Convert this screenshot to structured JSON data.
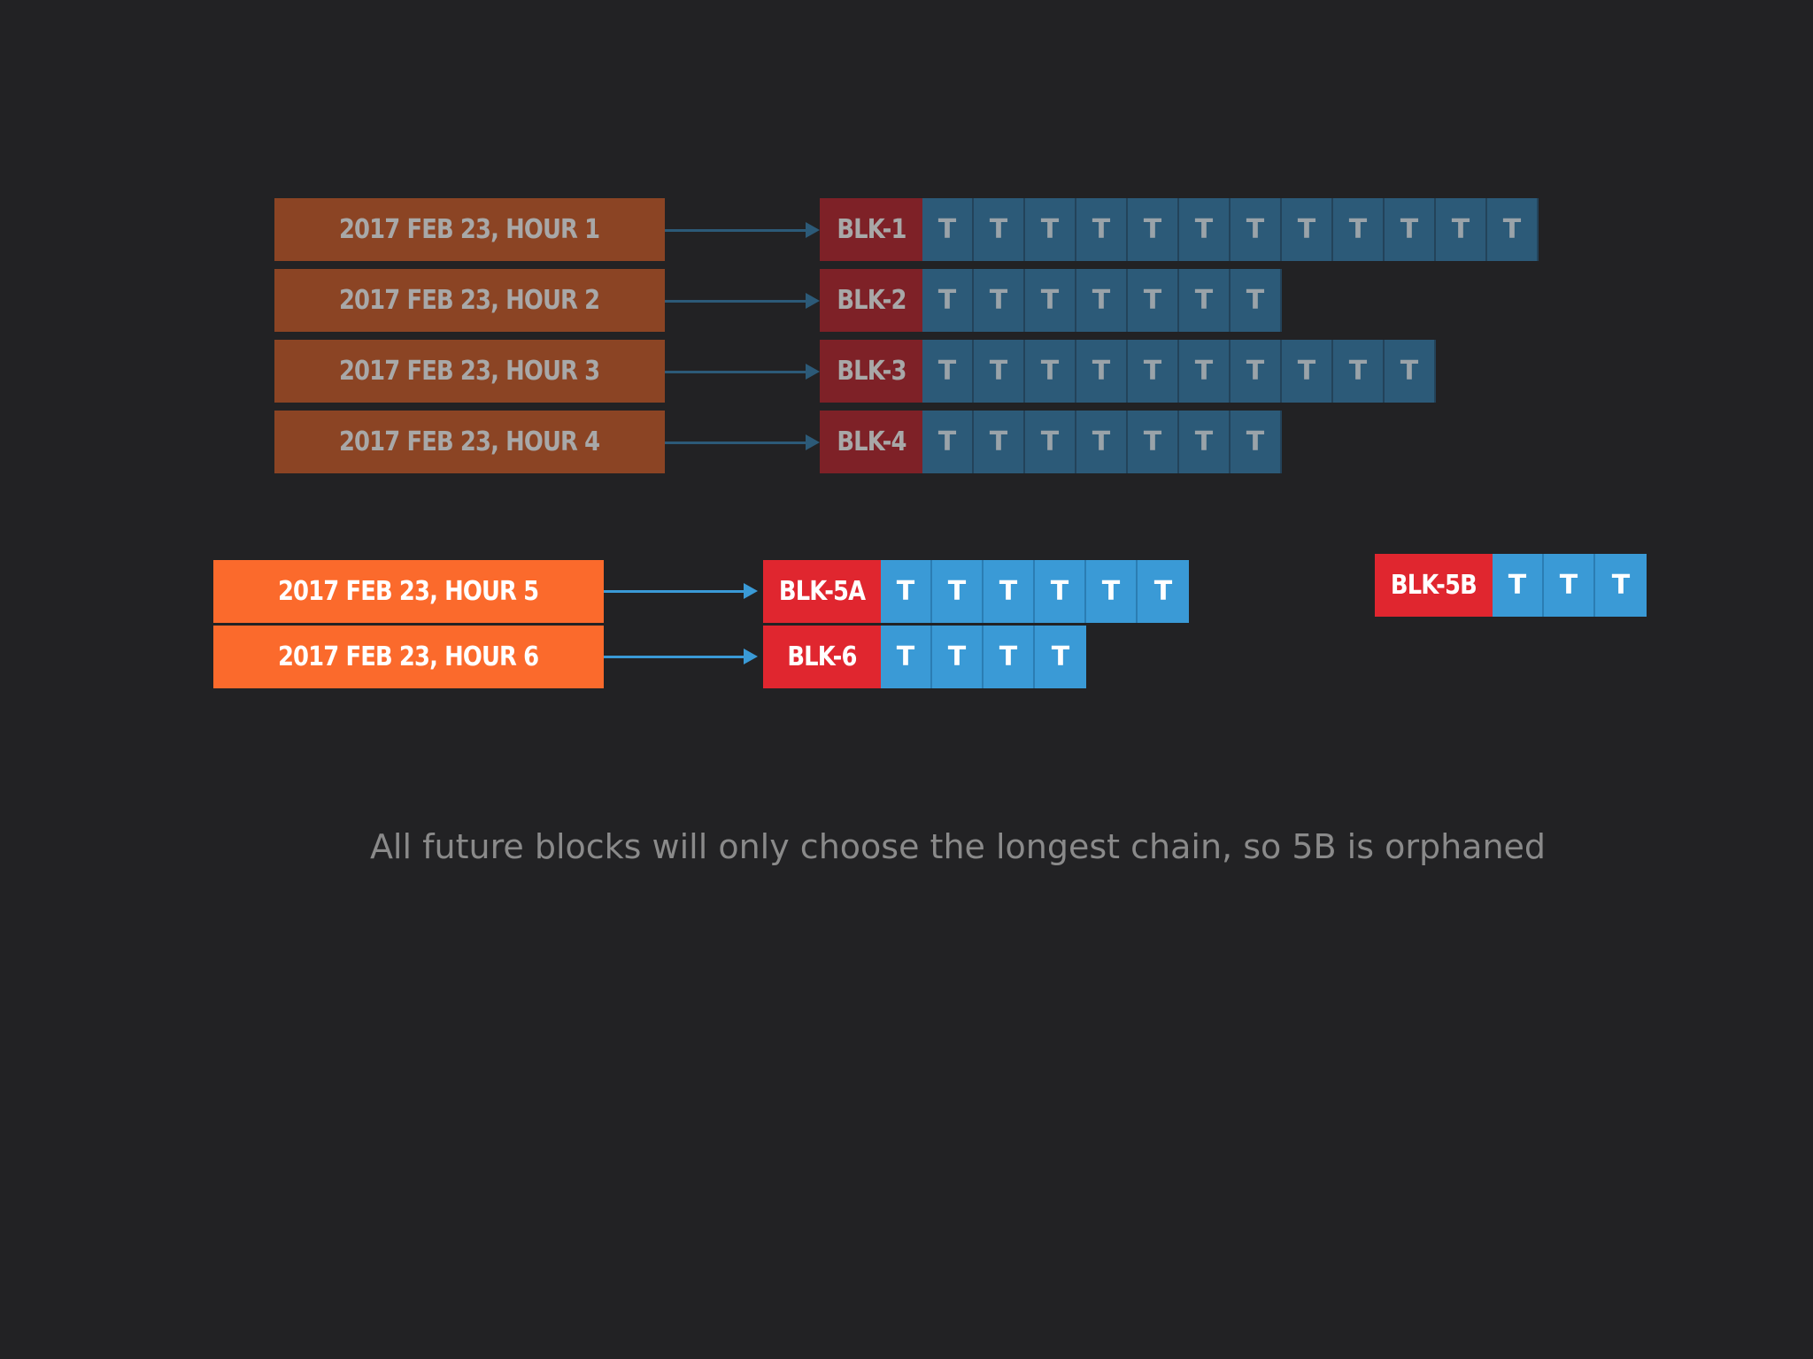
{
  "rows": [
    {
      "time": "2017 FEB 23, HOUR 1",
      "block": "BLK-1",
      "tx": [
        "T",
        "T",
        "T",
        "T",
        "T",
        "T",
        "T",
        "T",
        "T",
        "T",
        "T",
        "T"
      ]
    },
    {
      "time": "2017 FEB 23, HOUR 2",
      "block": "BLK-2",
      "tx": [
        "T",
        "T",
        "T",
        "T",
        "T",
        "T",
        "T"
      ]
    },
    {
      "time": "2017 FEB 23, HOUR 3",
      "block": "BLK-3",
      "tx": [
        "T",
        "T",
        "T",
        "T",
        "T",
        "T",
        "T",
        "T",
        "T",
        "T"
      ]
    },
    {
      "time": "2017 FEB 23, HOUR 4",
      "block": "BLK-4",
      "tx": [
        "T",
        "T",
        "T",
        "T",
        "T",
        "T",
        "T"
      ]
    },
    {
      "time": "2017 FEB 23, HOUR 5",
      "block": "BLK-5A",
      "tx": [
        "T",
        "T",
        "T",
        "T",
        "T",
        "T"
      ]
    },
    {
      "time": "2017 FEB 23, HOUR 6",
      "block": "BLK-6",
      "tx": [
        "T",
        "T",
        "T",
        "T"
      ]
    }
  ],
  "orphan": {
    "block": "BLK-5B",
    "tx": [
      "T",
      "T",
      "T"
    ]
  },
  "caption": "All future blocks will only choose the longest chain, so 5B is orphaned",
  "colors": {
    "background": "#222224",
    "time_dim": "#8b4424",
    "time_active": "#fb6a2c",
    "block_dim": "#7e2127",
    "block_active": "#e0262f",
    "tx_dim": "#2c5a78",
    "tx_active": "#3a9ad6"
  }
}
